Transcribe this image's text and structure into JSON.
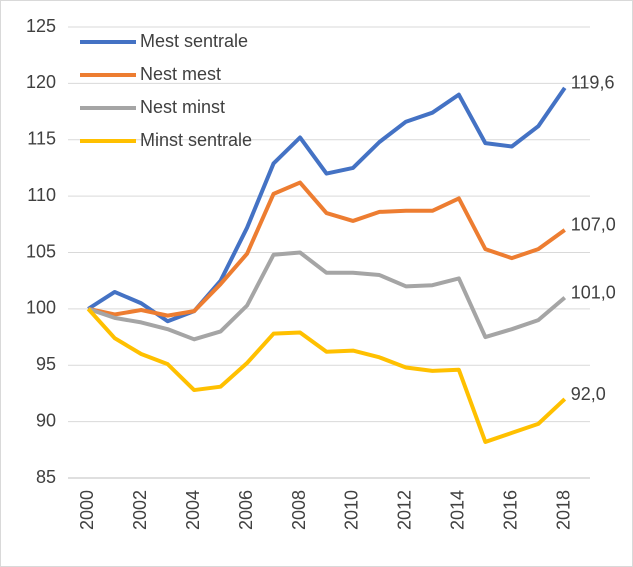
{
  "chart_data": {
    "type": "line",
    "categories": [
      "2000",
      null,
      "2002",
      null,
      "2004",
      null,
      "2006",
      null,
      "2008",
      null,
      "2010",
      null,
      "2012",
      null,
      "2014",
      null,
      "2016",
      null,
      "2018"
    ],
    "series": [
      {
        "name": "Mest sentrale",
        "color": "#4472c4",
        "values": [
          100,
          101.5,
          100.5,
          98.9,
          99.8,
          102.5,
          107.2,
          112.9,
          115.2,
          112.0,
          112.5,
          114.8,
          116.6,
          117.4,
          119.0,
          114.7,
          114.4,
          116.2,
          119.6
        ],
        "value_labels": [
          null,
          null,
          null,
          null,
          null,
          null,
          null,
          null,
          null,
          null,
          null,
          null,
          null,
          null,
          null,
          null,
          null,
          null,
          "119,6"
        ]
      },
      {
        "name": "Nest mest",
        "color": "#ed7d31",
        "values": [
          100,
          99.5,
          99.9,
          99.4,
          99.8,
          102.2,
          104.9,
          110.2,
          111.2,
          108.5,
          107.8,
          108.6,
          108.7,
          108.7,
          109.8,
          105.3,
          104.5,
          105.3,
          107.0
        ],
        "value_labels": [
          null,
          null,
          null,
          null,
          null,
          null,
          null,
          null,
          null,
          null,
          null,
          null,
          null,
          null,
          null,
          null,
          null,
          null,
          "107,0"
        ]
      },
      {
        "name": "Nest minst",
        "color": "#a5a5a5",
        "values": [
          100,
          99.2,
          98.8,
          98.2,
          97.3,
          98.0,
          100.3,
          104.8,
          105.0,
          103.2,
          103.2,
          103.0,
          102.0,
          102.1,
          102.7,
          97.5,
          98.2,
          99.0,
          101.0
        ],
        "value_labels": [
          null,
          null,
          null,
          null,
          null,
          null,
          null,
          null,
          null,
          null,
          null,
          null,
          null,
          null,
          null,
          null,
          null,
          null,
          "101,0"
        ]
      },
      {
        "name": "Minst sentrale",
        "color": "#ffc000",
        "values": [
          100,
          97.4,
          96.0,
          95.1,
          92.8,
          93.1,
          95.2,
          97.8,
          97.9,
          96.2,
          96.3,
          95.7,
          94.8,
          94.5,
          94.6,
          88.2,
          89.0,
          89.8,
          92.0
        ],
        "value_labels": [
          null,
          null,
          null,
          null,
          null,
          null,
          null,
          null,
          null,
          null,
          null,
          null,
          null,
          null,
          null,
          null,
          null,
          null,
          "92,0"
        ]
      }
    ],
    "ylim": [
      85,
      125
    ],
    "yticks": [
      85,
      90,
      95,
      100,
      105,
      110,
      115,
      120,
      125
    ],
    "grid": true
  }
}
